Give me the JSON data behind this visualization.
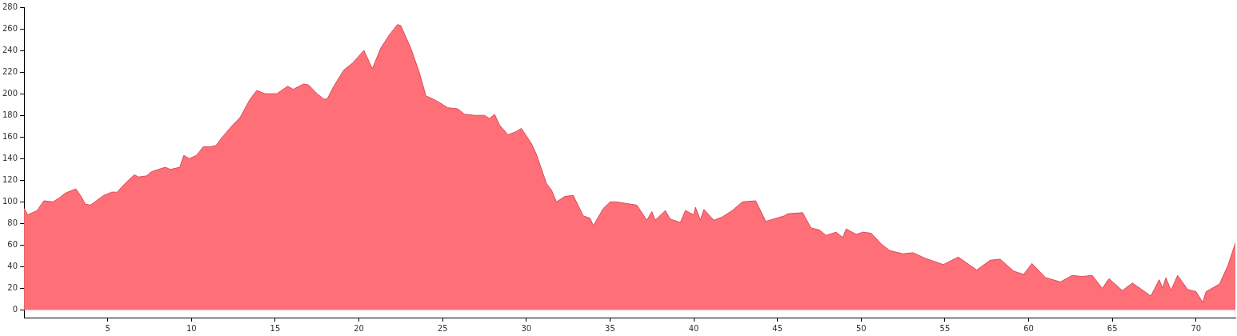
{
  "chart_data": {
    "type": "area",
    "x": [
      0,
      0.22,
      0.78,
      1.18,
      1.73,
      2.13,
      2.45,
      3.09,
      3.41,
      3.65,
      3.96,
      4.76,
      5.24,
      5.56,
      6.03,
      6.59,
      6.83,
      7.31,
      7.63,
      8.43,
      8.74,
      9.3,
      9.54,
      9.86,
      10.3,
      10.7,
      11.1,
      11.45,
      11.9,
      12.4,
      12.9,
      13.5,
      13.9,
      14.4,
      15.1,
      15.75,
      16.07,
      16.7,
      17.0,
      17.5,
      17.9,
      18.1,
      18.5,
      19.1,
      19.6,
      20.3,
      20.8,
      21.3,
      21.8,
      22.3,
      22.5,
      23.1,
      23.6,
      24.0,
      24.3,
      24.8,
      25.3,
      25.9,
      26.3,
      26.9,
      27.5,
      27.8,
      28.1,
      28.4,
      28.9,
      29.4,
      29.7,
      30.3,
      30.6,
      31.2,
      31.5,
      31.8,
      32.3,
      32.8,
      33.4,
      33.8,
      34.0,
      34.6,
      35.0,
      35.35,
      36.6,
      37.2,
      37.5,
      37.7,
      38.3,
      38.6,
      39.2,
      39.5,
      40.0,
      40.1,
      40.4,
      40.6,
      41.2,
      41.7,
      42.3,
      42.9,
      43.7,
      44.3,
      45.4,
      45.6,
      46.5,
      47.0,
      47.5,
      47.9,
      48.5,
      48.9,
      49.1,
      49.7,
      50.1,
      50.6,
      51.2,
      51.7,
      52.5,
      53.1,
      53.8,
      54.9,
      55.8,
      56.9,
      57.7,
      58.3,
      59.1,
      59.7,
      60.2,
      61.0,
      61.9,
      62.6,
      63.2,
      63.8,
      64.4,
      64.8,
      65.6,
      66.2,
      67.3,
      67.8,
      68.0,
      68.2,
      68.5,
      68.9,
      69.5,
      70.0,
      70.4,
      70.6,
      71.4,
      71.9,
      72.35
    ],
    "series": [
      {
        "color": "#ff6f78",
        "values": [
          94,
          88,
          92,
          101,
          100,
          104,
          108,
          112,
          105,
          98,
          97,
          106,
          109,
          109,
          117,
          125,
          123,
          124,
          128,
          132,
          130,
          132,
          143,
          140,
          143,
          151,
          151,
          152,
          161,
          170,
          178,
          195,
          203,
          200,
          200,
          207,
          204,
          209,
          208,
          200,
          195,
          195,
          207,
          222,
          228,
          240,
          223,
          242,
          254,
          264,
          263,
          242,
          220,
          198,
          196,
          192,
          187,
          186,
          181,
          180,
          180,
          177,
          181,
          171,
          162,
          165,
          168,
          154,
          144,
          117,
          111,
          100,
          105,
          106,
          87,
          85,
          78,
          94,
          100,
          100,
          97,
          83,
          91,
          83,
          92,
          84,
          81,
          92,
          88,
          95,
          83,
          93,
          83,
          86,
          92,
          100,
          101,
          82,
          87,
          89,
          90,
          76,
          74,
          69,
          72,
          67,
          75,
          70,
          72,
          71,
          61,
          55,
          52,
          53,
          48,
          42,
          49,
          37,
          46,
          47,
          36,
          33,
          43,
          30,
          26,
          32,
          31,
          32,
          20,
          29,
          18,
          25,
          13,
          28,
          20,
          30,
          18,
          32,
          19,
          17,
          7,
          17,
          24,
          41,
          62
        ]
      }
    ],
    "xlim": [
      0,
      72.35
    ],
    "ylim": [
      -7,
      280
    ],
    "xticks": [
      5,
      10,
      15,
      20,
      25,
      30,
      35,
      40,
      45,
      50,
      55,
      60,
      65,
      70
    ],
    "yticks": [
      0,
      20,
      40,
      60,
      80,
      100,
      120,
      140,
      160,
      180,
      200,
      220,
      240,
      260,
      280
    ]
  }
}
